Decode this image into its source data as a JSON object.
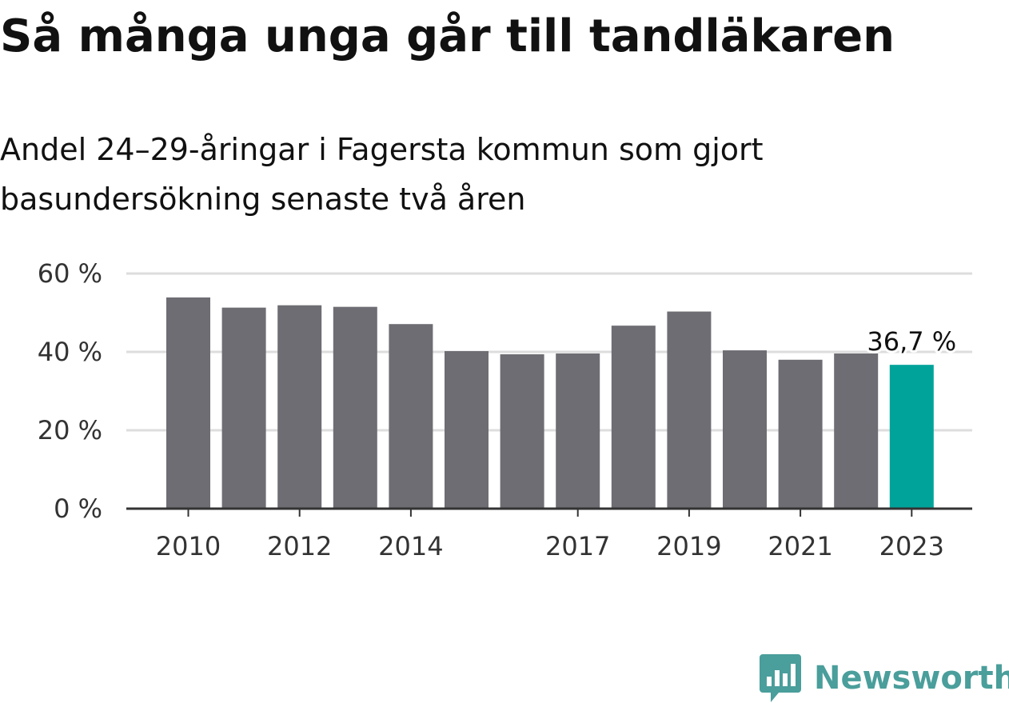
{
  "header": {
    "title": "Så många unga går till tandläkaren",
    "subtitle": "Andel 24–29-åringar i Fagersta kommun som gjort basundersökning senaste två åren"
  },
  "brand": {
    "name": "Newsworthy",
    "icon": "newsworthy-logo-icon",
    "color": "#4a9e9b"
  },
  "colors": {
    "bar": "#6e6d73",
    "highlight": "#00a39a",
    "grid": "#dddddd",
    "axis": "#333333"
  },
  "chart_data": {
    "type": "bar",
    "title": "Så många unga går till tandläkaren",
    "subtitle": "Andel 24–29-åringar i Fagersta kommun som gjort basundersökning senaste två åren",
    "categories": [
      "2010",
      "2011",
      "2012",
      "2013",
      "2014",
      "2015",
      "2016",
      "2017",
      "2018",
      "2019",
      "2020",
      "2021",
      "2022",
      "2023"
    ],
    "values": [
      53.9,
      51.3,
      51.9,
      51.5,
      47.1,
      40.2,
      39.4,
      39.6,
      46.7,
      50.3,
      40.4,
      38.0,
      39.6,
      36.7
    ],
    "x_tick_labels": [
      "2010",
      "2012",
      "2014",
      "2017",
      "2019",
      "2021",
      "2023"
    ],
    "y_ticks": [
      0,
      20,
      40,
      60
    ],
    "y_tick_labels": [
      "0 %",
      "20 %",
      "40 %",
      "60 %"
    ],
    "ylim": [
      0,
      60
    ],
    "xlabel": "",
    "ylabel": "",
    "grid": true,
    "legend": "none",
    "highlight_index": 13,
    "annotation": {
      "category": "2023",
      "text": "36,7 %"
    }
  }
}
